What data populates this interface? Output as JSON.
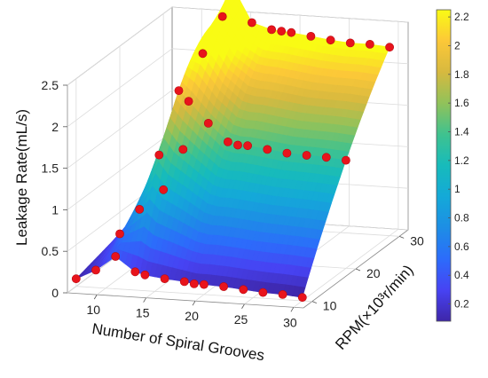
{
  "chart_data": {
    "type": "surface3d",
    "title": "",
    "xlabel": "Number of Spiral Grooves",
    "ylabel": "RPM(×10³r/min)",
    "zlabel": "Leakage Rate(mL/s)",
    "xlim": [
      7,
      31
    ],
    "ylim": [
      8,
      32
    ],
    "zlim": [
      0,
      2.5
    ],
    "x_ticks": [
      "10",
      "15",
      "20",
      "25",
      "30"
    ],
    "y_ticks": [
      "10",
      "20",
      "30"
    ],
    "z_ticks": [
      "0",
      "0.5",
      "1",
      "1.5",
      "2",
      "2.5"
    ],
    "colorbar_ticks": [
      "0.2",
      "0.4",
      "0.6",
      "0.8",
      "1",
      "1.2",
      "1.4",
      "1.6",
      "1.8",
      "2",
      "2.2"
    ],
    "colorbar_range": [
      0.08,
      2.25
    ],
    "colormap": "parula",
    "grid": true,
    "marker_color": "#e8141c",
    "grooves": [
      7,
      9,
      11,
      13,
      14,
      16,
      18,
      19,
      20,
      22,
      24,
      26,
      28,
      30
    ],
    "series": [
      {
        "rpm": 10,
        "values": [
          0.09,
          0.21,
          0.39,
          0.22,
          0.19,
          0.16,
          0.14,
          0.12,
          0.12,
          0.11,
          0.09,
          0.07,
          0.06,
          0.04
        ]
      },
      {
        "rpm": 20,
        "values": [
          0.24,
          0.55,
          1.22,
          2.01,
          1.89,
          1.64,
          1.43,
          1.4,
          1.4,
          1.37,
          1.34,
          1.33,
          1.32,
          1.3
        ]
      },
      {
        "rpm": 30,
        "values": [
          0.38,
          0.88,
          2.05,
          2.51,
          2.89,
          2.46,
          2.39,
          2.38,
          2.37,
          2.34,
          2.31,
          2.29,
          2.29,
          2.27
        ]
      }
    ]
  }
}
